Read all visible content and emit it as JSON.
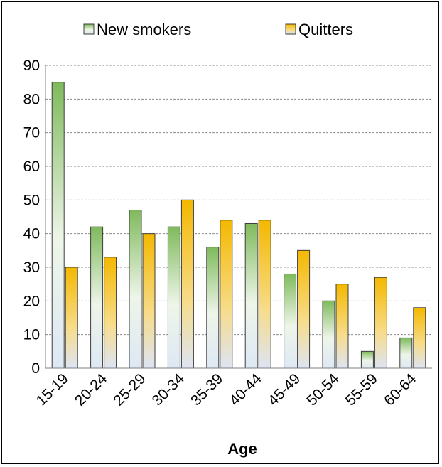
{
  "chart_data": {
    "type": "bar",
    "title": "",
    "xlabel": "Age",
    "ylabel": "",
    "ylim": [
      0,
      90
    ],
    "yticks": [
      0,
      10,
      20,
      30,
      40,
      50,
      60,
      70,
      80,
      90
    ],
    "grid": true,
    "legend_position": "top",
    "categories": [
      "15-19",
      "20-24",
      "25-29",
      "30-34",
      "35-39",
      "40-44",
      "45-49",
      "50-54",
      "55-59",
      "60-64"
    ],
    "series": [
      {
        "name": "New smokers",
        "values": [
          85,
          42,
          47,
          42,
          36,
          43,
          28,
          20,
          5,
          9
        ]
      },
      {
        "name": "Quitters",
        "values": [
          30,
          33,
          40,
          50,
          44,
          44,
          35,
          25,
          27,
          18
        ]
      }
    ]
  },
  "colors": {
    "new_smokers_top": "#7fba5c",
    "new_smokers_bottom": "#dde8f4",
    "quitters_top": "#f4b800",
    "quitters_bottom": "#dde4f4",
    "gridline": "#8c8c8c"
  }
}
